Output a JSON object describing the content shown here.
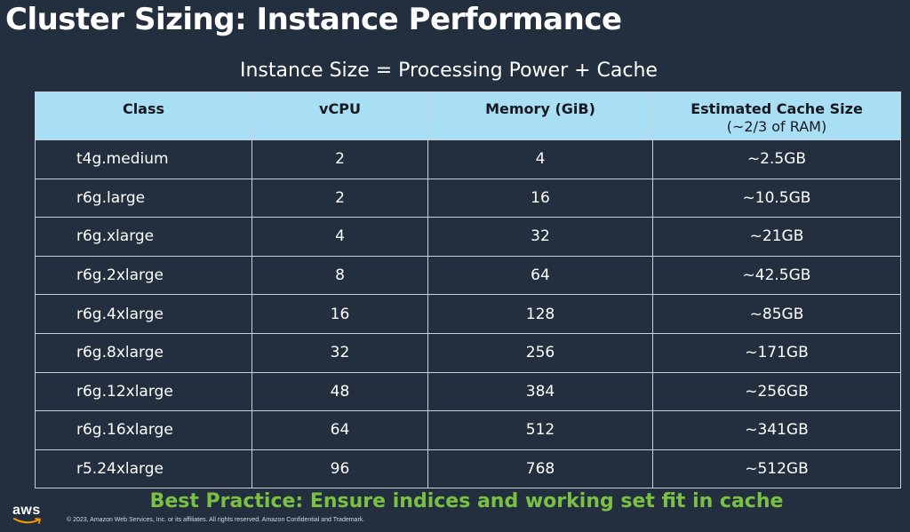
{
  "slide": {
    "title": "Cluster Sizing: Instance Performance",
    "subtitle": "Instance Size = Processing Power + Cache"
  },
  "table": {
    "headers": {
      "class": "Class",
      "vcpu": "vCPU",
      "memory": "Memory (GiB)",
      "cache": "Estimated Cache Size",
      "cache_sub": "(~2/3 of RAM)"
    },
    "rows": [
      {
        "class": "t4g.medium",
        "vcpu": "2",
        "memory": "4",
        "cache": "~2.5GB"
      },
      {
        "class": "r6g.large",
        "vcpu": "2",
        "memory": "16",
        "cache": "~10.5GB"
      },
      {
        "class": "r6g.xlarge",
        "vcpu": "4",
        "memory": "32",
        "cache": "~21GB"
      },
      {
        "class": "r6g.2xlarge",
        "vcpu": "8",
        "memory": "64",
        "cache": "~42.5GB"
      },
      {
        "class": "r6g.4xlarge",
        "vcpu": "16",
        "memory": "128",
        "cache": "~85GB"
      },
      {
        "class": "r6g.8xlarge",
        "vcpu": "32",
        "memory": "256",
        "cache": "~171GB"
      },
      {
        "class": "r6g.12xlarge",
        "vcpu": "48",
        "memory": "384",
        "cache": "~256GB"
      },
      {
        "class": "r6g.16xlarge",
        "vcpu": "64",
        "memory": "512",
        "cache": "~341GB"
      },
      {
        "class": "r5.24xlarge",
        "vcpu": "96",
        "memory": "768",
        "cache": "~512GB"
      }
    ]
  },
  "footer": {
    "best_practice": "Best Practice: Ensure indices and working set fit in cache",
    "logo_text": "aws",
    "copyright": "© 2023, Amazon Web Services, Inc. or its affiliates. All rights reserved. Amazon Confidential and Trademark."
  },
  "colors": {
    "background": "#232f3e",
    "header_fill": "#a9dff5",
    "accent_green": "#7ac143",
    "logo_smile": "#ff9900"
  }
}
